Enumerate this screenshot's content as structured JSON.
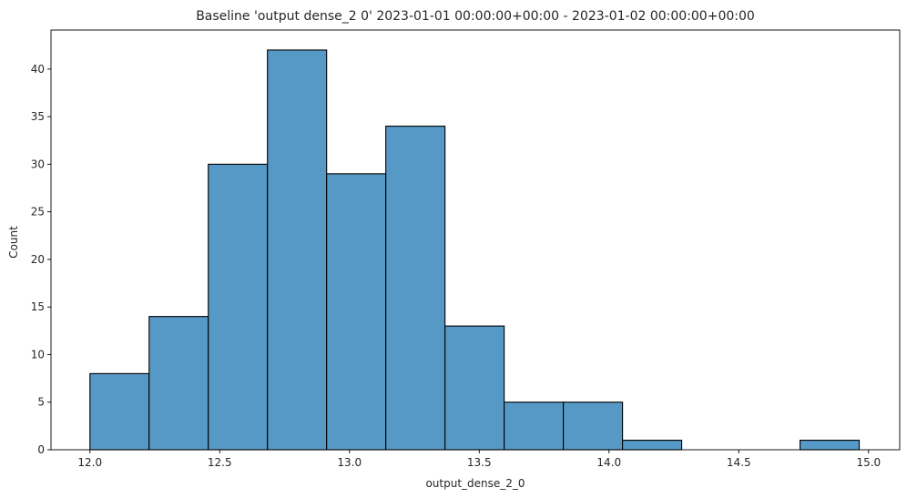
{
  "chart_data": {
    "type": "bar",
    "title": "Baseline 'output dense_2 0' 2023-01-01 00:00:00+00:00 - 2023-01-02 00:00:00+00:00",
    "xlabel": "output_dense_2_0",
    "ylabel": "Count",
    "xlim": [
      11.85,
      15.12
    ],
    "ylim": [
      0,
      44.1
    ],
    "bin_edges": [
      12.0,
      12.228,
      12.456,
      12.684,
      12.912,
      13.14,
      13.368,
      13.596,
      13.824,
      14.052,
      14.28,
      14.508,
      14.736,
      14.964
    ],
    "counts": [
      8,
      14,
      30,
      42,
      29,
      34,
      13,
      5,
      5,
      1,
      0,
      0,
      1
    ],
    "xticks": [
      12.0,
      12.5,
      13.0,
      13.5,
      14.0,
      14.5,
      15.0
    ],
    "xtick_labels": [
      "12.0",
      "12.5",
      "13.0",
      "13.5",
      "14.0",
      "14.5",
      "15.0"
    ],
    "yticks": [
      0,
      5,
      10,
      15,
      20,
      25,
      30,
      35,
      40
    ],
    "ytick_labels": [
      "0",
      "5",
      "10",
      "15",
      "20",
      "25",
      "30",
      "35",
      "40"
    ],
    "bar_color": "#5799c6",
    "edge_color": "#000000",
    "grid": false,
    "legend": "none"
  }
}
